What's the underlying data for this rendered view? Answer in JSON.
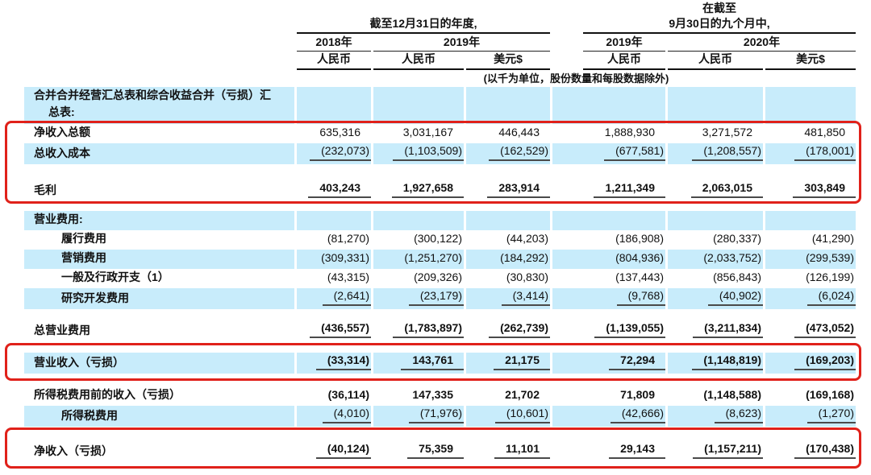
{
  "colors": {
    "row_highlight": "#c8ecfb",
    "annotation_red": "#e0211a"
  },
  "header": {
    "period1_title": "截至12月31日的年度,",
    "period2_pre": "在截至",
    "period2_title": "9月30日的九个月中,",
    "col_years": [
      "2018年",
      "2019年",
      "2019年",
      "2020年"
    ],
    "col_currencies": [
      "人民币",
      "人民币",
      "美元$",
      "人民币",
      "人民币",
      "美元$"
    ],
    "note": "(以千为单位，股份数量和每股数据除外)"
  },
  "section_header": {
    "line1": "合并合并经营汇总表和综合收益合并（亏损）汇",
    "line2": "总表:"
  },
  "rows": [
    {
      "type": "item",
      "label": "净收入总额",
      "values": [
        "635,316",
        "3,031,167",
        "446,443",
        "1,888,930",
        "3,271,572",
        "481,850"
      ]
    },
    {
      "type": "item25",
      "label": "总收入成本",
      "blue": true,
      "rule": true,
      "values": [
        "(232,073)",
        "(1,103,509)",
        "(162,529)",
        "(677,581)",
        "(1,208,557)",
        "(178,001)"
      ]
    },
    {
      "type": "spacer"
    },
    {
      "type": "total32",
      "label": "毛利",
      "bold": true,
      "rule": true,
      "values": [
        "403,243",
        "1,927,658",
        "283,914",
        "1,211,349",
        "2,063,015",
        "303,849"
      ]
    },
    {
      "type": "spacer12"
    },
    {
      "type": "section",
      "label": "营业费用:",
      "bold": true,
      "blue": true
    },
    {
      "type": "item",
      "label": "履行费用",
      "indent": true,
      "values": [
        "(81,270)",
        "(300,122)",
        "(44,203)",
        "(186,908)",
        "(280,337)",
        "(41,290)"
      ]
    },
    {
      "type": "item",
      "label": "营销费用",
      "indent": true,
      "blue": true,
      "values": [
        "(309,331)",
        "(1,251,270)",
        "(184,292)",
        "(804,936)",
        "(2,033,752)",
        "(299,539)"
      ]
    },
    {
      "type": "item",
      "label": "一般及行政开支（1）",
      "indent": true,
      "values": [
        "(43,315)",
        "(209,326)",
        "(30,830)",
        "(137,443)",
        "(856,843)",
        "(126,199)"
      ]
    },
    {
      "type": "item",
      "label": "研究开发费用",
      "indent": true,
      "blue": true,
      "rule": true,
      "values": [
        "(2,641)",
        "(23,179)",
        "(3,414)",
        "(9,768)",
        "(40,902)",
        "(6,024)"
      ]
    },
    {
      "type": "spacer"
    },
    {
      "type": "total26",
      "label": "总营业费用",
      "bold": true,
      "rule": true,
      "values": [
        "(436,557)",
        "(1,783,897)",
        "(262,739)",
        "(1,139,055)",
        "(3,211,834)",
        "(473,052)"
      ]
    },
    {
      "type": "spacer"
    },
    {
      "type": "total26",
      "label": "营业收入（亏损）",
      "bold": true,
      "blue": true,
      "rule": true,
      "values": [
        "(33,314)",
        "143,761",
        "21,175",
        "72,294",
        "(1,148,819)",
        "(169,203)"
      ]
    },
    {
      "type": "spacer16"
    },
    {
      "type": "item",
      "label": "所得税费用前的收入（亏损）",
      "bold": true,
      "values": [
        "(36,114)",
        "147,335",
        "21,702",
        "71,809",
        "(1,148,588)",
        "(169,168)"
      ]
    },
    {
      "type": "item25",
      "label": "所得税费用",
      "indent": true,
      "blue": true,
      "rule": true,
      "values": [
        "(4,010)",
        "(71,976)",
        "(10,601)",
        "(42,666)",
        "(8,623)",
        "(1,270)"
      ]
    },
    {
      "type": "spacer"
    },
    {
      "type": "total30",
      "label": "净收入（亏损）",
      "bold": true,
      "rule": true,
      "values": [
        "(40,124)",
        "75,359",
        "11,101",
        "29,143",
        "(1,157,211)",
        "(170,438)"
      ]
    }
  ]
}
